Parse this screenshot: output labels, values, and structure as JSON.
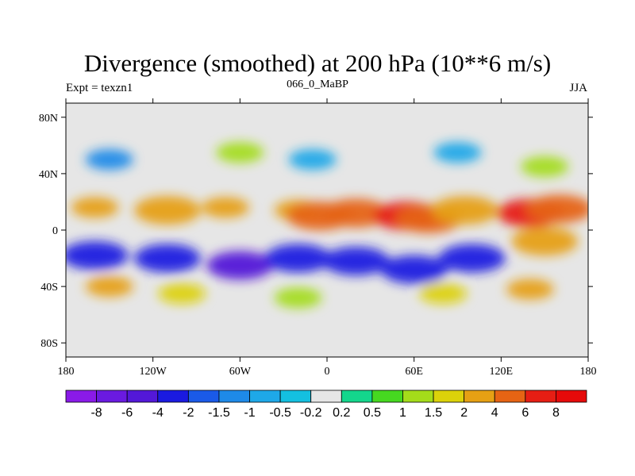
{
  "chart_data": {
    "type": "heatmap",
    "title": "Divergence (smoothed) at 200 hPa (10**6 m/s)",
    "left_string": "Expt = texzn1",
    "center_string": "066_0_MaBP",
    "right_string": "JJA",
    "x_range": [
      -180,
      180
    ],
    "y_range": [
      -90,
      90
    ],
    "x_ticks": [
      {
        "value": -180,
        "label": "180"
      },
      {
        "value": -120,
        "label": "120W"
      },
      {
        "value": -60,
        "label": "60W"
      },
      {
        "value": 0,
        "label": "0"
      },
      {
        "value": 60,
        "label": "60E"
      },
      {
        "value": 120,
        "label": "120E"
      },
      {
        "value": 180,
        "label": "180"
      }
    ],
    "y_ticks": [
      {
        "value": 80,
        "label": "80N"
      },
      {
        "value": 40,
        "label": "40N"
      },
      {
        "value": 0,
        "label": "0"
      },
      {
        "value": -40,
        "label": "40S"
      },
      {
        "value": -80,
        "label": "80S"
      }
    ],
    "colorbar": {
      "levels": [
        "-8",
        "-6",
        "-4",
        "-2",
        "-1.5",
        "-1",
        "-0.5",
        "-0.2",
        "0.2",
        "0.5",
        "1",
        "1.5",
        "2",
        "4",
        "6",
        "8"
      ],
      "colors": [
        "#8a1ae8",
        "#6a1ae0",
        "#5318d8",
        "#1a1ae0",
        "#1a5ae8",
        "#1e8ae8",
        "#1ea8e8",
        "#14c0e0",
        "#e6e6e6",
        "#14d68c",
        "#46d820",
        "#a4dc1a",
        "#dcd20a",
        "#e6a014",
        "#e66414",
        "#e61e14",
        "#e60a0a"
      ]
    },
    "fields": [
      {
        "lon": -160,
        "lat": 16,
        "value": 2.2
      },
      {
        "lon": -110,
        "lat": 14,
        "value": 3.5
      },
      {
        "lon": -70,
        "lat": 16,
        "value": 2.8
      },
      {
        "lon": -20,
        "lat": 14,
        "value": 2.0
      },
      {
        "lon": -5,
        "lat": 10,
        "value": 5.0
      },
      {
        "lon": 20,
        "lat": 12,
        "value": 4.5
      },
      {
        "lon": 55,
        "lat": 10,
        "value": 6.5
      },
      {
        "lon": 70,
        "lat": 8,
        "value": 5.0
      },
      {
        "lon": 95,
        "lat": 14,
        "value": 3.0
      },
      {
        "lon": 140,
        "lat": 12,
        "value": 6.0
      },
      {
        "lon": 160,
        "lat": 15,
        "value": 4.0
      },
      {
        "lon": -160,
        "lat": -18,
        "value": -3.0
      },
      {
        "lon": -110,
        "lat": -20,
        "value": -3.5
      },
      {
        "lon": -60,
        "lat": -25,
        "value": -4.2
      },
      {
        "lon": -20,
        "lat": -20,
        "value": -3.5
      },
      {
        "lon": 20,
        "lat": -22,
        "value": -3.0
      },
      {
        "lon": 60,
        "lat": -28,
        "value": -4.0
      },
      {
        "lon": 100,
        "lat": -20,
        "value": -3.2
      },
      {
        "lon": 150,
        "lat": -8,
        "value": 3.0
      },
      {
        "lon": -150,
        "lat": -40,
        "value": 2.0
      },
      {
        "lon": -100,
        "lat": -45,
        "value": 1.5
      },
      {
        "lon": -20,
        "lat": -48,
        "value": 1.2
      },
      {
        "lon": 80,
        "lat": -45,
        "value": 1.8
      },
      {
        "lon": 140,
        "lat": -42,
        "value": 2.8
      },
      {
        "lon": -150,
        "lat": 50,
        "value": -1.2
      },
      {
        "lon": -60,
        "lat": 55,
        "value": 1.4
      },
      {
        "lon": -10,
        "lat": 50,
        "value": -0.8
      },
      {
        "lon": 90,
        "lat": 55,
        "value": -0.9
      },
      {
        "lon": 150,
        "lat": 45,
        "value": 1.0
      }
    ]
  }
}
